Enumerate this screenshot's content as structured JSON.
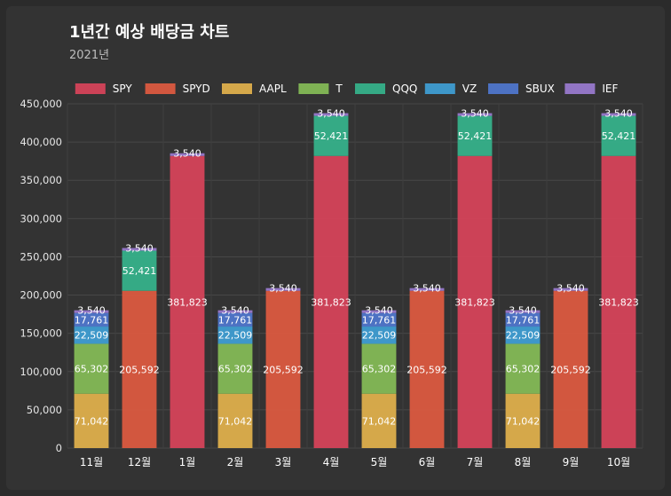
{
  "page": {
    "title": "1년간 예상 배당금 차트",
    "subtitle": "2021년"
  },
  "chart_data": {
    "type": "bar",
    "stacked": true,
    "title": "1년간 예상 배당금 차트",
    "subtitle": "2021년",
    "xlabel": "",
    "ylabel": "",
    "ylim": [
      0,
      450000
    ],
    "yticks": [
      0,
      50000,
      100000,
      150000,
      200000,
      250000,
      300000,
      350000,
      400000,
      450000
    ],
    "ytick_labels": [
      "0",
      "50,000",
      "100,000",
      "150,000",
      "200,000",
      "250,000",
      "300,000",
      "350,000",
      "400,000",
      "450,000"
    ],
    "grid": true,
    "legend_position": "top",
    "categories": [
      "11월",
      "12월",
      "1월",
      "2월",
      "3월",
      "4월",
      "5월",
      "6월",
      "7월",
      "8월",
      "9월",
      "10월"
    ],
    "series": [
      {
        "name": "SPY",
        "color": "#d9435a",
        "values": [
          0,
          0,
          381823,
          0,
          0,
          381823,
          0,
          0,
          381823,
          0,
          0,
          381823
        ]
      },
      {
        "name": "SPYD",
        "color": "#e05a40",
        "values": [
          0,
          205592,
          0,
          0,
          205592,
          0,
          0,
          205592,
          0,
          0,
          205592,
          0
        ]
      },
      {
        "name": "AAPL",
        "color": "#e3b24c",
        "values": [
          71042,
          0,
          0,
          71042,
          0,
          0,
          71042,
          0,
          0,
          71042,
          0,
          0
        ]
      },
      {
        "name": "T",
        "color": "#86bd57",
        "values": [
          65302,
          0,
          0,
          65302,
          0,
          0,
          65302,
          0,
          0,
          65302,
          0,
          0
        ]
      },
      {
        "name": "QQQ",
        "color": "#35b48c",
        "values": [
          0,
          52421,
          0,
          0,
          0,
          52421,
          0,
          0,
          52421,
          0,
          0,
          52421
        ]
      },
      {
        "name": "VZ",
        "color": "#3f9fd6",
        "values": [
          22509,
          0,
          0,
          22509,
          0,
          0,
          22509,
          0,
          0,
          22509,
          0,
          0
        ]
      },
      {
        "name": "SBUX",
        "color": "#4f77cf",
        "values": [
          17761,
          0,
          0,
          17761,
          0,
          0,
          17761,
          0,
          0,
          17761,
          0,
          0
        ]
      },
      {
        "name": "IEF",
        "color": "#9a7bd0",
        "values": [
          3540,
          3540,
          3540,
          3540,
          3540,
          3540,
          3540,
          3540,
          3540,
          3540,
          3540,
          3540
        ]
      }
    ]
  }
}
